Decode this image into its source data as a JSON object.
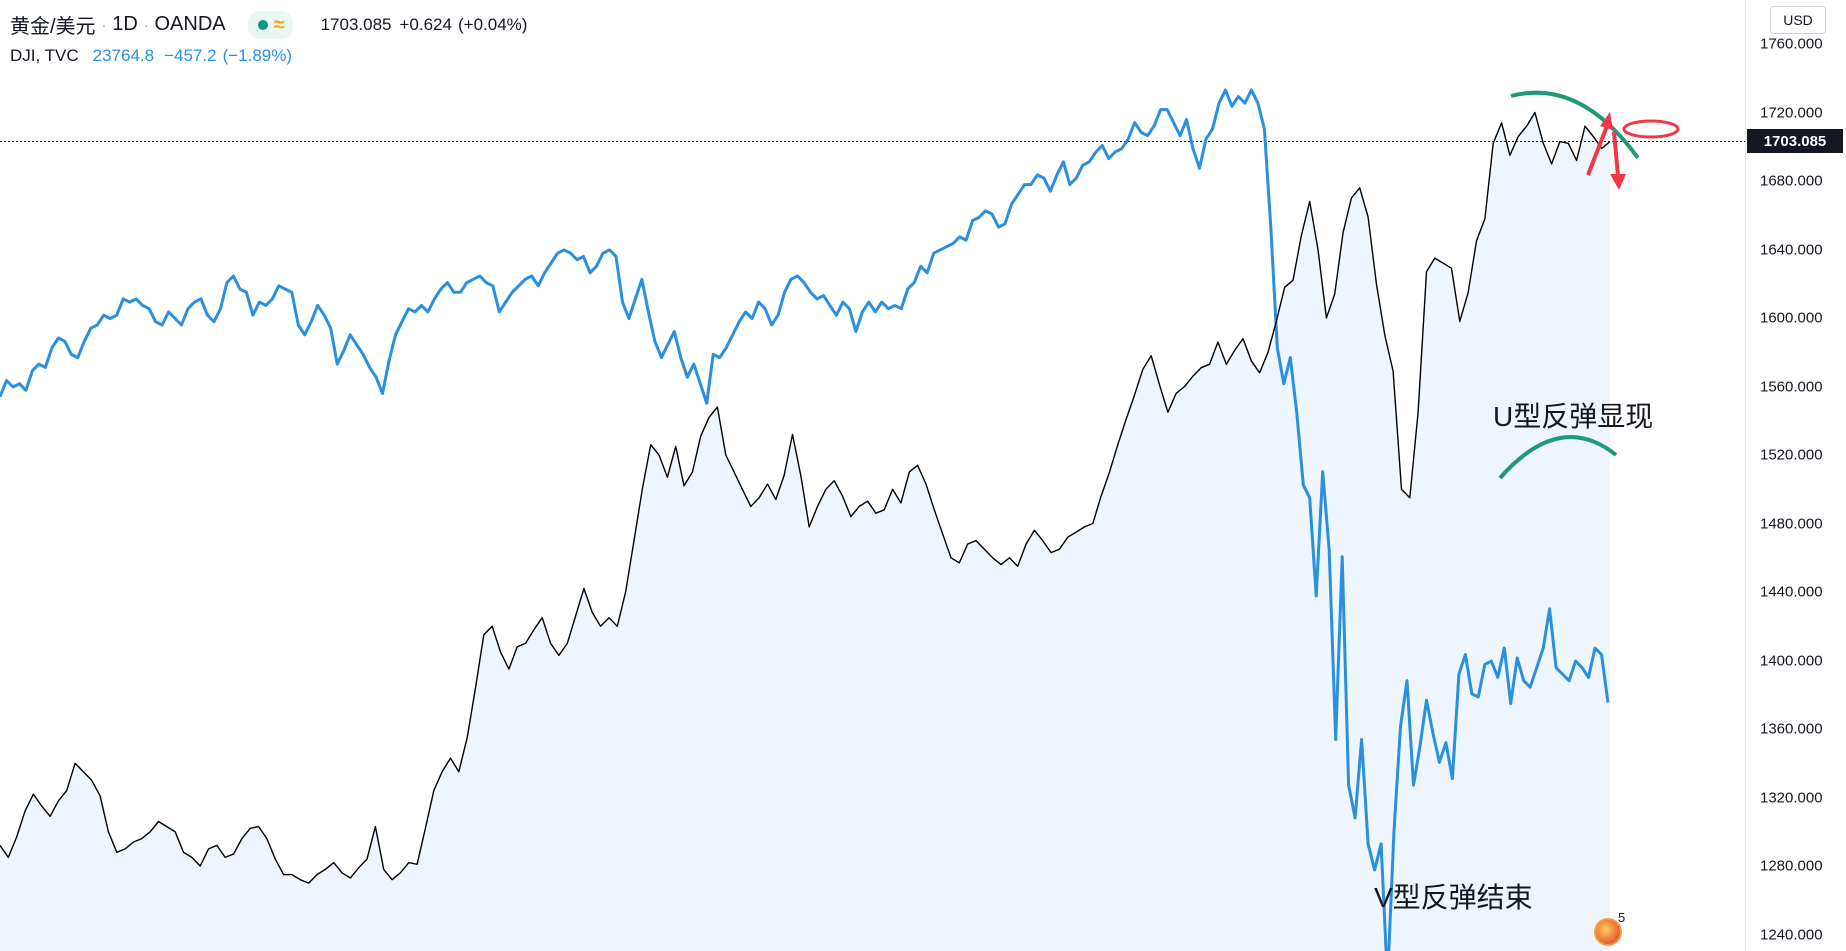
{
  "header": {
    "symbol": "黄金/美元",
    "interval": "1D",
    "exchange": "OANDA",
    "separator": "·",
    "market_status_icon": "market-open-dot-icon",
    "extra_icon": "approx-wave-icon",
    "last_price": "1703.085",
    "change": "+0.624",
    "change_pct": "(+0.04%)"
  },
  "compare": {
    "symbol": "DJI, TVC",
    "value": "23764.8",
    "change": "−457.2",
    "change_pct": "(−1.89%)",
    "color": "#2a8fdc"
  },
  "price_axis": {
    "currency": "USD",
    "current_price_tag": "1703.085",
    "ticks": [
      "1760.000",
      "1720.000",
      "1680.000",
      "1640.000",
      "1600.000",
      "1560.000",
      "1520.000",
      "1480.000",
      "1440.000",
      "1400.000",
      "1360.000",
      "1320.000",
      "1280.000",
      "1240.000"
    ]
  },
  "annotations": {
    "u_shape": "U型反弹显现",
    "v_shape": "V型反弹结束"
  },
  "badge": {
    "count": "5"
  },
  "colors": {
    "gold_line": "#000000",
    "dji_line": "#2a8fdc",
    "area_fill": "#eef5fd",
    "arc": "#1f9a78",
    "arrow": "#f23645"
  },
  "chart_data": {
    "type": "line",
    "ylabel": "USD",
    "ylim": [
      1230,
      1770
    ],
    "current_price": 1703.085,
    "series": [
      {
        "name": "黄金/美元",
        "values": [
          1292,
          1285,
          1297,
          1312,
          1322,
          1315,
          1309,
          1318,
          1324,
          1340,
          1335,
          1330,
          1321,
          1300,
          1288,
          1290,
          1294,
          1296,
          1300,
          1306,
          1303,
          1300,
          1288,
          1285,
          1280,
          1290,
          1292,
          1285,
          1287,
          1296,
          1302,
          1303,
          1296,
          1284,
          1275,
          1275,
          1272,
          1270,
          1275,
          1278,
          1282,
          1276,
          1273,
          1279,
          1284,
          1303,
          1278,
          1272,
          1276,
          1282,
          1281,
          1302,
          1324,
          1335,
          1343,
          1335,
          1355,
          1384,
          1415,
          1420,
          1405,
          1395,
          1408,
          1410,
          1418,
          1425,
          1410,
          1403,
          1410,
          1426,
          1442,
          1428,
          1420,
          1425,
          1420,
          1440,
          1470,
          1500,
          1526,
          1520,
          1507,
          1525,
          1502,
          1510,
          1531,
          1542,
          1548,
          1520,
          1510,
          1500,
          1490,
          1495,
          1503,
          1494,
          1508,
          1532,
          1508,
          1478,
          1490,
          1500,
          1505,
          1496,
          1484,
          1490,
          1493,
          1486,
          1488,
          1500,
          1492,
          1510,
          1514,
          1503,
          1488,
          1474,
          1460,
          1457,
          1468,
          1470,
          1465,
          1460,
          1456,
          1460,
          1455,
          1468,
          1476,
          1470,
          1463,
          1465,
          1472,
          1475,
          1478,
          1480,
          1496,
          1510,
          1526,
          1541,
          1555,
          1570,
          1578,
          1561,
          1545,
          1556,
          1560,
          1566,
          1571,
          1573,
          1586,
          1573,
          1581,
          1588,
          1575,
          1568,
          1580,
          1598,
          1618,
          1622,
          1648,
          1668,
          1640,
          1600,
          1614,
          1650,
          1670,
          1676,
          1659,
          1620,
          1590,
          1569,
          1500,
          1495,
          1545,
          1627,
          1635,
          1632,
          1629,
          1598,
          1615,
          1645,
          1658,
          1702,
          1714,
          1695,
          1706,
          1712,
          1720,
          1702,
          1690,
          1703,
          1702,
          1692,
          1712,
          1706,
          1699,
          1703
        ],
        "color": "#000000"
      },
      {
        "name": "DJI, TVC",
        "values": [
          28450,
          28700,
          28600,
          28650,
          28550,
          28850,
          28950,
          28900,
          29200,
          29350,
          29300,
          29100,
          29050,
          29300,
          29500,
          29550,
          29700,
          29650,
          29700,
          29950,
          29900,
          29950,
          29850,
          29800,
          29600,
          29550,
          29750,
          29650,
          29550,
          29800,
          29900,
          29950,
          29700,
          29600,
          29800,
          30200,
          30300,
          30100,
          30050,
          29700,
          29900,
          29850,
          29950,
          30150,
          30100,
          30050,
          29550,
          29400,
          29600,
          29850,
          29700,
          29500,
          28950,
          29150,
          29400,
          29250,
          29100,
          28900,
          28750,
          28500,
          29000,
          29400,
          29600,
          29800,
          29750,
          29850,
          29750,
          29950,
          30100,
          30200,
          30050,
          30050,
          30200,
          30250,
          30300,
          30200,
          30150,
          29750,
          29900,
          30050,
          30150,
          30250,
          30300,
          30150,
          30350,
          30500,
          30650,
          30700,
          30650,
          30550,
          30600,
          30350,
          30450,
          30650,
          30700,
          30600,
          29900,
          29650,
          29950,
          30250,
          29750,
          29300,
          29050,
          29250,
          29450,
          29050,
          28750,
          28950,
          28650,
          28350,
          29100,
          29050,
          29200,
          29400,
          29600,
          29750,
          29650,
          29900,
          29800,
          29550,
          29700,
          30050,
          30250,
          30300,
          30200,
          30050,
          29950,
          30000,
          29850,
          29700,
          29900,
          29800,
          29450,
          29750,
          29900,
          29750,
          29900,
          29800,
          29850,
          29800,
          30100,
          30200,
          30450,
          30350,
          30650,
          30700,
          30750,
          30800,
          30900,
          30850,
          31150,
          31200,
          31300,
          31250,
          31050,
          31100,
          31400,
          31550,
          31700,
          31700,
          31850,
          31800,
          31600,
          31850,
          32050,
          31700,
          31800,
          32000,
          32050,
          32200,
          32300,
          32100,
          32200,
          32250,
          32400,
          32650,
          32500,
          32450,
          32600,
          32850,
          32850,
          32650,
          32450,
          32700,
          32250,
          31950,
          32400,
          32550,
          32950,
          33150,
          32900,
          33050,
          32950,
          33150,
          32950,
          32550,
          31050,
          29200,
          28650,
          29050,
          28200,
          27100,
          26900,
          25400,
          27300,
          26100,
          23200,
          26000,
          22500,
          22000,
          23200,
          21600,
          21200,
          21600,
          19500,
          21800,
          23400,
          24100,
          22500,
          23100,
          23800,
          23300,
          22850,
          23150,
          22600,
          24200,
          24500,
          23900,
          23850,
          24350,
          24400,
          24150,
          24600,
          23750,
          24450,
          24100,
          24000,
          24300,
          24600,
          25200,
          24300,
          24200,
          24100,
          24400,
          24300,
          24150,
          24600,
          24500,
          23765
        ],
        "color": "#2a8fdc"
      }
    ]
  }
}
